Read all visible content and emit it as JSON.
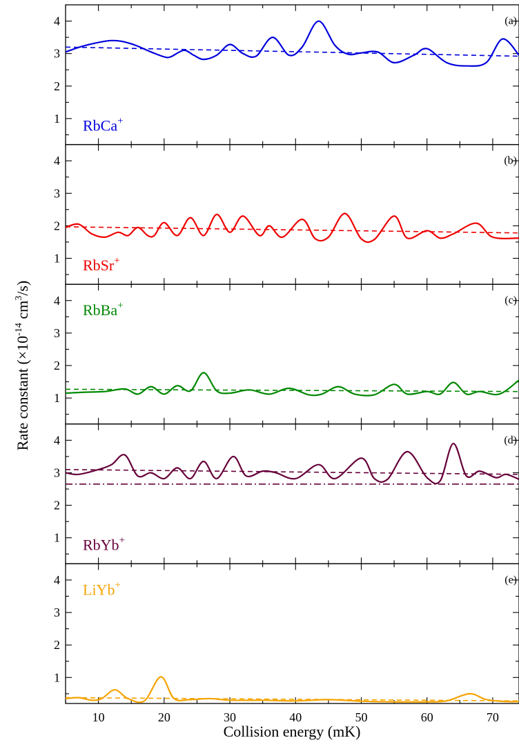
{
  "chart_data": {
    "type": "line",
    "xlabel": "Collision energy (mK)",
    "ylabel": {
      "prefix": "Rate constant (×10",
      "exp1": "-14",
      "mid": " cm",
      "exp2": "3",
      "suffix": "/s)"
    },
    "xlim": [
      5,
      74
    ],
    "x_ticks": [
      10,
      20,
      30,
      40,
      50,
      60,
      70
    ],
    "panels": [
      {
        "id": "a",
        "letter": "(a)",
        "species": "RbCa",
        "species_sup": "+",
        "species_pos": "bottom-left",
        "color": "#0000dd",
        "ylim": [
          0.2,
          4.5
        ],
        "y_ticks": [
          1,
          2,
          3,
          4
        ],
        "series": [
          {
            "style": "solid",
            "x": [
              5,
              8,
              12,
              15,
              18,
              20,
              21,
              23,
              24.5,
              26,
              28,
              30,
              32,
              34,
              36.5,
              39,
              41,
              43.5,
              46,
              48,
              50,
              52.5,
              55,
              58,
              60,
              63,
              66,
              69,
              71.5,
              74
            ],
            "y": [
              3.05,
              3.25,
              3.4,
              3.3,
              3.05,
              2.9,
              2.9,
              3.1,
              2.95,
              2.82,
              2.95,
              3.28,
              3.0,
              2.92,
              3.5,
              2.95,
              3.2,
              4.0,
              3.25,
              2.98,
              3.02,
              3.05,
              2.72,
              2.95,
              3.15,
              2.72,
              2.62,
              2.72,
              3.45,
              2.95
            ]
          },
          {
            "style": "dashed",
            "x": [
              5,
              74
            ],
            "y": [
              3.2,
              2.92
            ]
          }
        ]
      },
      {
        "id": "b",
        "letter": "(b)",
        "species": "RbSr",
        "species_sup": "+",
        "species_pos": "bottom-left",
        "color": "#ee0000",
        "ylim": [
          0.2,
          4.5
        ],
        "y_ticks": [
          1,
          2,
          3,
          4
        ],
        "series": [
          {
            "style": "solid",
            "x": [
              5,
              7,
              9,
              11,
              13,
              14.5,
              16,
              17.5,
              18.5,
              20,
              22,
              24,
              26,
              28,
              30,
              32,
              34.5,
              36,
              38,
              41,
              43,
              45,
              47.5,
              50,
              52,
              55,
              57,
              60,
              62,
              64,
              67.5,
              70,
              74
            ],
            "y": [
              1.95,
              2.05,
              1.75,
              1.65,
              1.8,
              1.7,
              1.95,
              1.7,
              1.7,
              2.1,
              1.7,
              2.25,
              1.7,
              2.35,
              1.8,
              2.3,
              1.7,
              2.0,
              1.65,
              2.2,
              1.6,
              1.65,
              2.38,
              1.6,
              1.58,
              2.3,
              1.62,
              1.85,
              1.62,
              1.75,
              2.08,
              1.65,
              1.62
            ]
          },
          {
            "style": "dashed",
            "x": [
              5,
              74
            ],
            "y": [
              1.97,
              1.78
            ]
          }
        ]
      },
      {
        "id": "c",
        "letter": "(c)",
        "species": "RbBa",
        "species_sup": "+",
        "species_pos": "top-left",
        "color": "#008800",
        "ylim": [
          0.2,
          4.5
        ],
        "y_ticks": [
          1,
          2,
          3,
          4
        ],
        "series": [
          {
            "style": "solid",
            "x": [
              5,
              8,
              11,
              14,
              16,
              18,
              20,
              22,
              24,
              26,
              28,
              30,
              33,
              36,
              39,
              42,
              44,
              46.5,
              49,
              52,
              55,
              57,
              60,
              62,
              64,
              66,
              68,
              71,
              74
            ],
            "y": [
              1.15,
              1.18,
              1.2,
              1.28,
              1.12,
              1.35,
              1.12,
              1.38,
              1.22,
              1.78,
              1.22,
              1.15,
              1.25,
              1.12,
              1.3,
              1.1,
              1.12,
              1.35,
              1.12,
              1.1,
              1.42,
              1.12,
              1.2,
              1.12,
              1.48,
              1.12,
              1.2,
              1.12,
              1.55
            ]
          },
          {
            "style": "dashed",
            "x": [
              5,
              74
            ],
            "y": [
              1.27,
              1.2
            ]
          }
        ]
      },
      {
        "id": "d",
        "letter": "(d)",
        "species": "RbYb",
        "species_sup": "+",
        "species_pos": "bottom-left",
        "color": "#66003a",
        "ylim": [
          0.2,
          4.5
        ],
        "y_ticks": [
          1,
          2,
          3,
          4
        ],
        "series": [
          {
            "style": "solid",
            "x": [
              5,
              7,
              10,
              12,
              14,
              16,
              18,
              20,
              22,
              24,
              26,
              28,
              30.5,
              32.5,
              35,
              37,
              40,
              43.5,
              46,
              50,
              52,
              54,
              57,
              60,
              62,
              64,
              66,
              68,
              70.5,
              72,
              74
            ],
            "y": [
              3.0,
              2.95,
              3.1,
              3.25,
              3.55,
              2.9,
              3.0,
              2.82,
              3.15,
              2.82,
              3.35,
              2.82,
              3.5,
              2.9,
              3.05,
              3.0,
              2.82,
              3.25,
              2.82,
              3.45,
              2.82,
              2.8,
              3.65,
              2.85,
              2.75,
              3.9,
              2.9,
              3.05,
              2.85,
              2.95,
              2.8
            ]
          },
          {
            "style": "dashed",
            "x": [
              5,
              74
            ],
            "y": [
              3.1,
              2.95
            ]
          },
          {
            "style": "dashdot",
            "x": [
              5,
              74
            ],
            "y": [
              2.65,
              2.65
            ]
          }
        ]
      },
      {
        "id": "e",
        "letter": "(e)",
        "species": "LiYb",
        "species_sup": "+",
        "species_pos": "top-left",
        "color": "#f5a300",
        "ylim": [
          0.2,
          4.5
        ],
        "y_ticks": [
          1,
          2,
          3,
          4
        ],
        "series": [
          {
            "style": "solid",
            "x": [
              5,
              7,
              9,
              10.5,
              12.5,
              14.5,
              17,
              19.5,
              21.5,
              24,
              27,
              30,
              35,
              40,
              45,
              50,
              55,
              60,
              63,
              66.5,
              69,
              72,
              74
            ],
            "y": [
              0.35,
              0.38,
              0.3,
              0.35,
              0.62,
              0.35,
              0.28,
              1.02,
              0.35,
              0.32,
              0.35,
              0.3,
              0.3,
              0.28,
              0.32,
              0.27,
              0.25,
              0.25,
              0.28,
              0.5,
              0.32,
              0.26,
              0.26
            ]
          },
          {
            "style": "dashed",
            "x": [
              5,
              74
            ],
            "y": [
              0.38,
              0.28
            ]
          }
        ]
      }
    ]
  }
}
